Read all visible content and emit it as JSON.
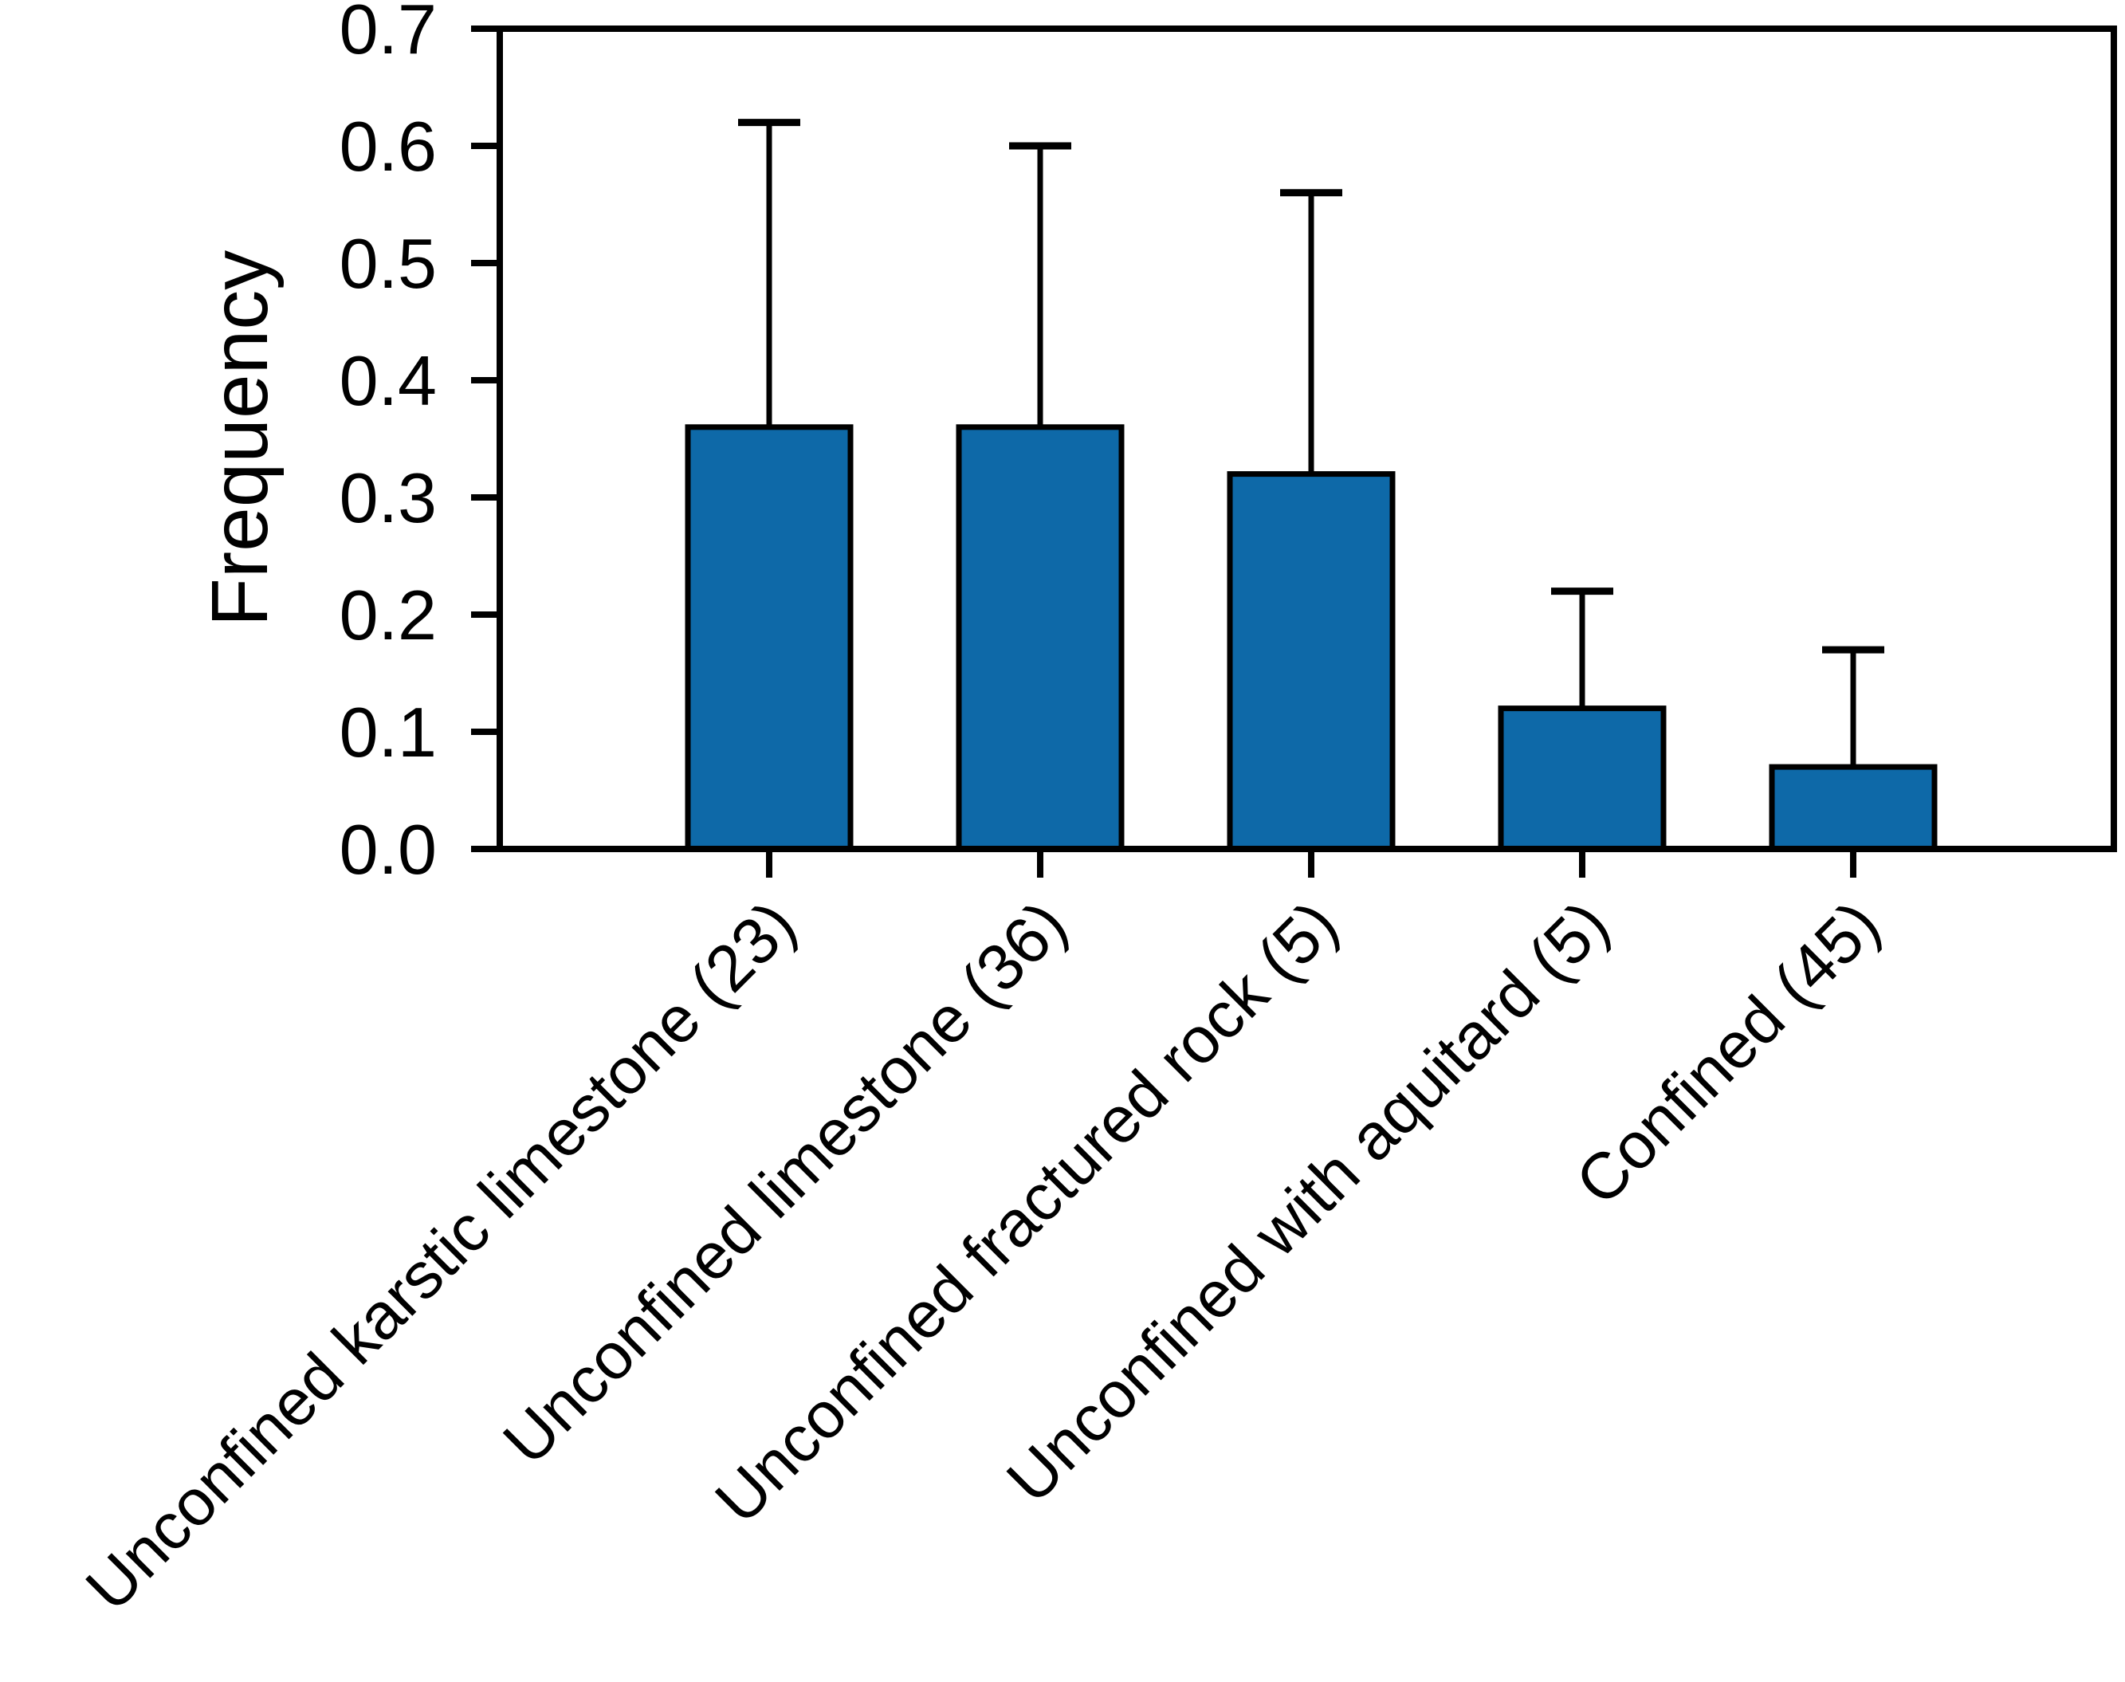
{
  "figure": {
    "background": "#ffffff",
    "text_color": "#000000"
  },
  "chart_data": {
    "type": "bar",
    "title": "",
    "xlabel": "",
    "ylabel": "Frequency",
    "categories": [
      "Unconfined karstic limestone (23)",
      "Unconfined limestone (36)",
      "Unconfined fractured rock (5)",
      "Unconfined with aquitard (5)",
      "Confined (45)"
    ],
    "values": [
      0.36,
      0.36,
      0.32,
      0.12,
      0.07
    ],
    "error_plus": [
      0.26,
      0.24,
      0.24,
      0.1,
      0.1
    ],
    "error_bar_tops": [
      0.62,
      0.6,
      0.56,
      0.22,
      0.17
    ],
    "ylim": [
      0.0,
      0.7
    ],
    "ytick_step": 0.1,
    "ytick_labels": [
      "0.0",
      "0.1",
      "0.2",
      "0.3",
      "0.4",
      "0.5",
      "0.6",
      "0.7"
    ],
    "grid": false,
    "legend": null,
    "x_tick_label_rotation_deg": 45,
    "bar_color": "#0e69a8",
    "bar_edge_color": "#000000",
    "error_color": "#000000",
    "axis_color": "#000000"
  }
}
